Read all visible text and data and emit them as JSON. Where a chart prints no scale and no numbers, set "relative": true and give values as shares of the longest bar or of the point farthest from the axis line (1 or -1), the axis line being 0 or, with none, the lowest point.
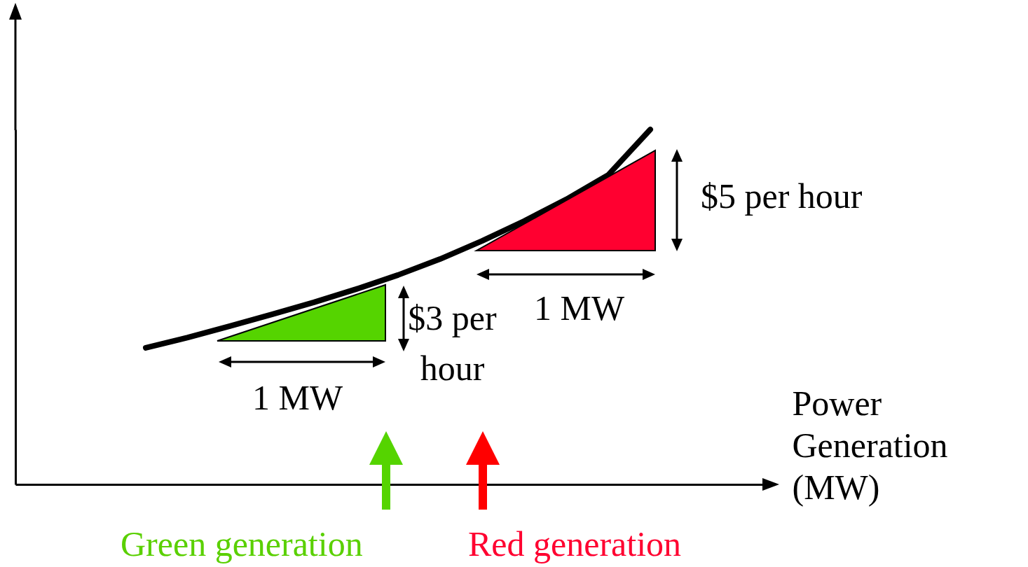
{
  "chart_data": {
    "type": "line",
    "relative": true,
    "xlabel": "Power Generation (MW)",
    "tick_labels": false,
    "marker": "none",
    "line_style": "solid",
    "categories": [
      null,
      null,
      null,
      null,
      null,
      null,
      null,
      null,
      null,
      null,
      null,
      null,
      null,
      null,
      null,
      null,
      null,
      null
    ],
    "series": [
      {
        "color": "#000000",
        "values": [
          null,
          null,
          null,
          0.385,
          0.414,
          0.446,
          0.479,
          0.513,
          0.55,
          0.59,
          0.635,
          0.686,
          0.742,
          0.803,
          0.872,
          1.0,
          null,
          null
        ]
      }
    ],
    "annotations": [
      "$5 per hour",
      "1 MW",
      "$3 per hour",
      "1 MW",
      "Green generation",
      "Red generation"
    ]
  }
}
